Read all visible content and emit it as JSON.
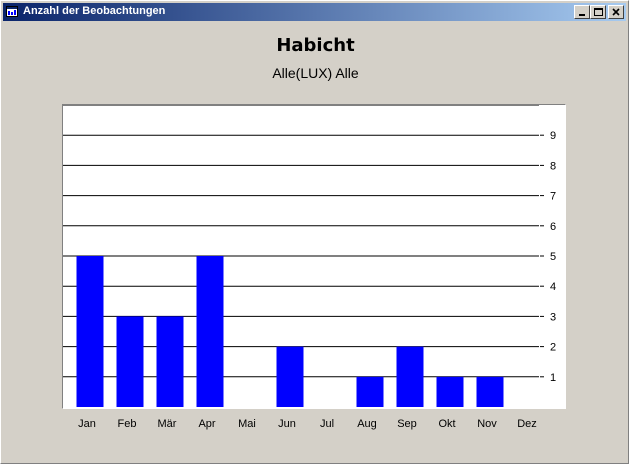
{
  "window": {
    "title": "Anzahl der Beobachtungen",
    "title_bar_color": "#0a246a",
    "minimize_icon": "minimize-icon",
    "maximize_icon": "maximize-icon",
    "close_icon": "close-icon"
  },
  "chart_data": {
    "type": "bar",
    "title": "Habicht",
    "subtitle": "Alle(LUX) Alle",
    "categories": [
      "Jan",
      "Feb",
      "Mär",
      "Apr",
      "Mai",
      "Jun",
      "Jul",
      "Aug",
      "Sep",
      "Okt",
      "Nov",
      "Dez"
    ],
    "values": [
      5,
      3,
      3,
      5,
      0,
      2,
      0,
      1,
      2,
      1,
      1,
      0
    ],
    "y_ticks": [
      1,
      2,
      3,
      4,
      5,
      6,
      7,
      8,
      9
    ],
    "ylim": [
      0,
      10
    ],
    "y_axis_side": "right",
    "grid": true,
    "bar_color": "#0000ff",
    "xlabel": "",
    "ylabel": ""
  }
}
